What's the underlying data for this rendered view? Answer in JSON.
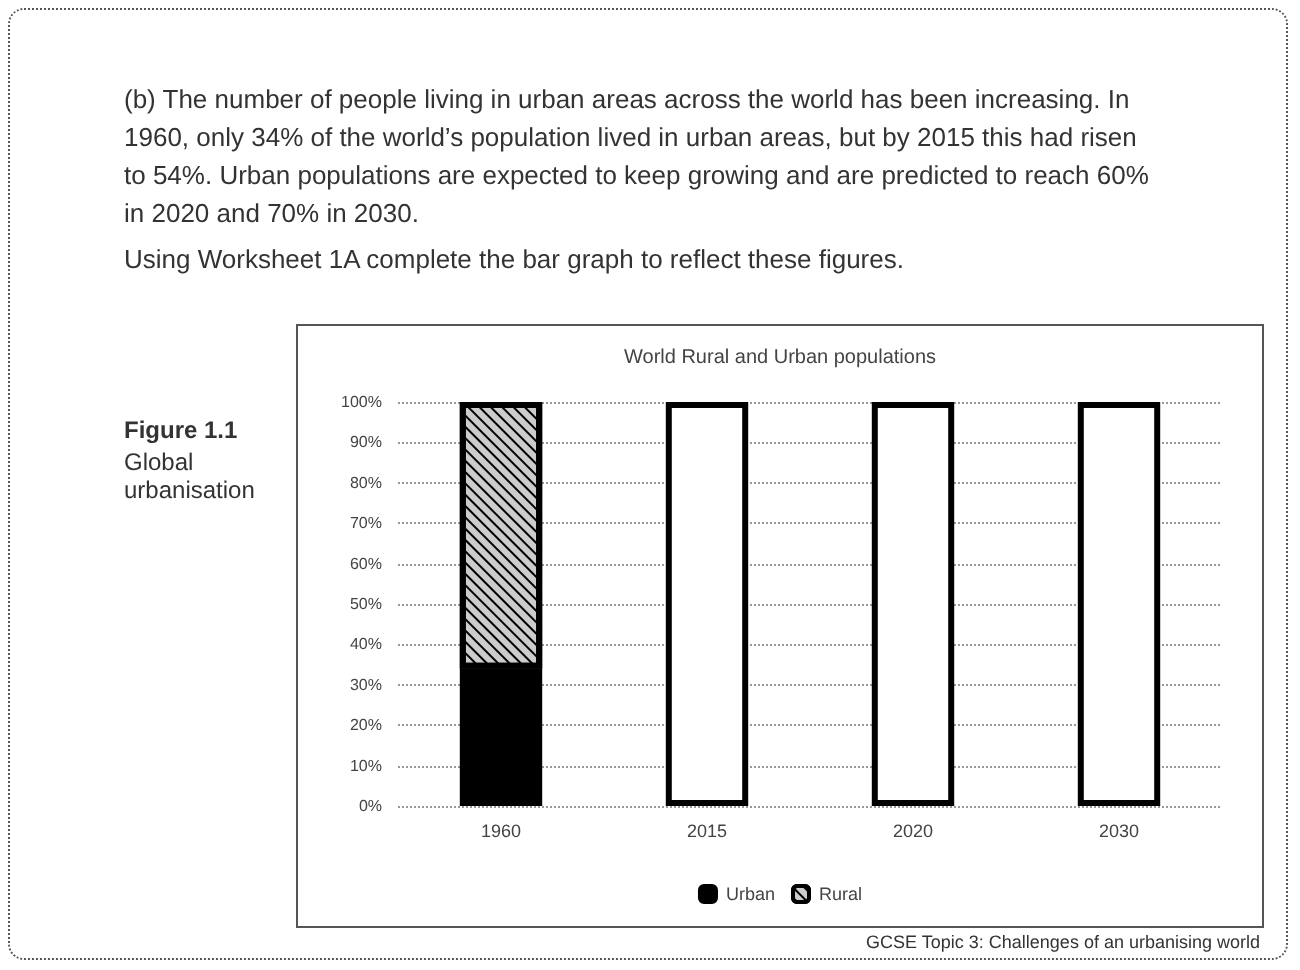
{
  "chart_data": {
    "type": "bar",
    "title": "World Rural and Urban populations",
    "annotations": [
      "(b) The number of people living in urban areas across the world has been increasing. In 1960, only 34% of the world’s population lived in urban areas, but by 2015 this had risen to 54%. Urban populations are expected to keep growing and are predicted to reach 60% in 2020 and 70% in 2030.",
      "Using Worksheet 1A complete the bar graph to reflect these figures.",
      "Figure 1.1",
      "Global urbanisation",
      "GCSE Topic 3: Challenges of an urbanising world"
    ],
    "categories": [
      "1960",
      "2015",
      "2020",
      "2030"
    ],
    "stacked": true,
    "series": [
      {
        "name": "Urban",
        "color": "#000000",
        "values": [
          34,
          null,
          null,
          null
        ]
      },
      {
        "name": "Rural",
        "color": "#cccccc",
        "values": [
          66,
          null,
          null,
          null
        ]
      },
      {
        "color": "#ffffff",
        "values": [
          null,
          100,
          100,
          100
        ]
      }
    ],
    "ylim": [
      0,
      100
    ],
    "yticks": [
      {
        "value": 0,
        "label": "0%"
      },
      {
        "value": 10,
        "label": "10%"
      },
      {
        "value": 20,
        "label": "20%"
      },
      {
        "value": 30,
        "label": "30%"
      },
      {
        "value": 40,
        "label": "40%"
      },
      {
        "value": 50,
        "label": "50%"
      },
      {
        "value": 60,
        "label": "60%"
      },
      {
        "value": 70,
        "label": "70%"
      },
      {
        "value": 80,
        "label": "80%"
      },
      {
        "value": 90,
        "label": "90%"
      },
      {
        "value": 100,
        "label": "100%"
      }
    ],
    "grid": "y",
    "legend": "bottom"
  }
}
